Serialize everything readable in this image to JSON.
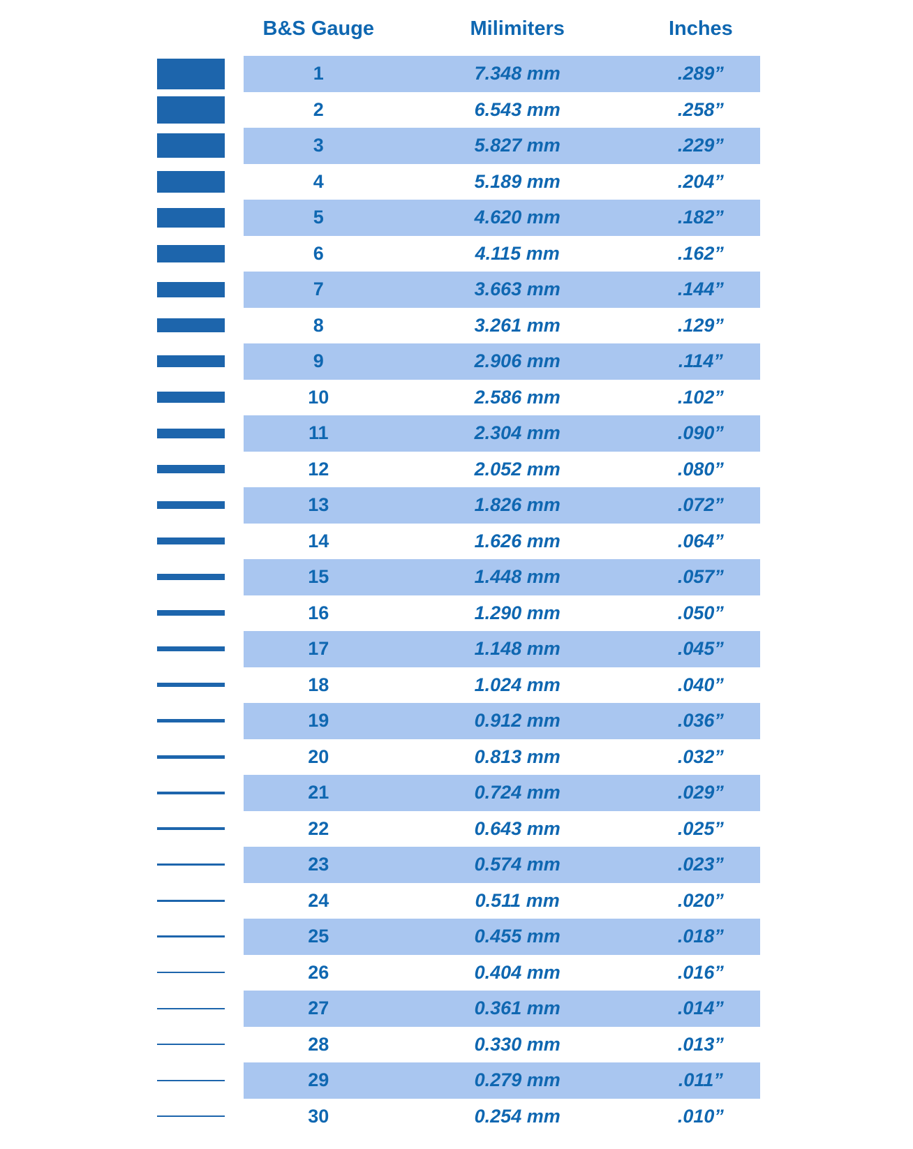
{
  "colors": {
    "bar_blue": "#1D65AC",
    "text_blue": "#0F67B1",
    "band_blue": "#A9C6F0",
    "background": "#FFFFFF"
  },
  "header": {
    "gauge": "B&S Gauge",
    "mm": "Milimiters",
    "inches": "Inches"
  },
  "chart_data": {
    "type": "table",
    "columns": [
      "B&S Gauge",
      "Milimiters",
      "Inches"
    ],
    "layout": {
      "row_striping": "odd gauge rows shaded light blue",
      "left_bars": "horizontal bars depict wire thickness proportional to mm value"
    },
    "rows": [
      {
        "gauge": "1",
        "mm": 7.348,
        "mm_label": "7.348 mm",
        "inches": 0.289,
        "inches_label": ".289”"
      },
      {
        "gauge": "2",
        "mm": 6.543,
        "mm_label": "6.543 mm",
        "inches": 0.258,
        "inches_label": ".258”"
      },
      {
        "gauge": "3",
        "mm": 5.827,
        "mm_label": "5.827 mm",
        "inches": 0.229,
        "inches_label": ".229”"
      },
      {
        "gauge": "4",
        "mm": 5.189,
        "mm_label": "5.189 mm",
        "inches": 0.204,
        "inches_label": ".204”"
      },
      {
        "gauge": "5",
        "mm": 4.62,
        "mm_label": "4.620 mm",
        "inches": 0.182,
        "inches_label": ".182”"
      },
      {
        "gauge": "6",
        "mm": 4.115,
        "mm_label": "4.115 mm",
        "inches": 0.162,
        "inches_label": ".162”"
      },
      {
        "gauge": "7",
        "mm": 3.663,
        "mm_label": "3.663 mm",
        "inches": 0.144,
        "inches_label": ".144”"
      },
      {
        "gauge": "8",
        "mm": 3.261,
        "mm_label": "3.261 mm",
        "inches": 0.129,
        "inches_label": ".129”"
      },
      {
        "gauge": "9",
        "mm": 2.906,
        "mm_label": "2.906 mm",
        "inches": 0.114,
        "inches_label": ".114”"
      },
      {
        "gauge": "10",
        "mm": 2.586,
        "mm_label": "2.586 mm",
        "inches": 0.102,
        "inches_label": ".102”"
      },
      {
        "gauge": "11",
        "mm": 2.304,
        "mm_label": "2.304 mm",
        "inches": 0.09,
        "inches_label": ".090”"
      },
      {
        "gauge": "12",
        "mm": 2.052,
        "mm_label": "2.052 mm",
        "inches": 0.08,
        "inches_label": ".080”"
      },
      {
        "gauge": "13",
        "mm": 1.826,
        "mm_label": "1.826 mm",
        "inches": 0.072,
        "inches_label": ".072”"
      },
      {
        "gauge": "14",
        "mm": 1.626,
        "mm_label": "1.626 mm",
        "inches": 0.064,
        "inches_label": ".064”"
      },
      {
        "gauge": "15",
        "mm": 1.448,
        "mm_label": "1.448 mm",
        "inches": 0.057,
        "inches_label": ".057”"
      },
      {
        "gauge": "16",
        "mm": 1.29,
        "mm_label": "1.290 mm",
        "inches": 0.05,
        "inches_label": ".050”"
      },
      {
        "gauge": "17",
        "mm": 1.148,
        "mm_label": "1.148 mm",
        "inches": 0.045,
        "inches_label": ".045”"
      },
      {
        "gauge": "18",
        "mm": 1.024,
        "mm_label": "1.024 mm",
        "inches": 0.04,
        "inches_label": ".040”"
      },
      {
        "gauge": "19",
        "mm": 0.912,
        "mm_label": "0.912 mm",
        "inches": 0.036,
        "inches_label": ".036”"
      },
      {
        "gauge": "20",
        "mm": 0.813,
        "mm_label": "0.813 mm",
        "inches": 0.032,
        "inches_label": ".032”"
      },
      {
        "gauge": "21",
        "mm": 0.724,
        "mm_label": "0.724 mm",
        "inches": 0.029,
        "inches_label": ".029”"
      },
      {
        "gauge": "22",
        "mm": 0.643,
        "mm_label": "0.643 mm",
        "inches": 0.025,
        "inches_label": ".025”"
      },
      {
        "gauge": "23",
        "mm": 0.574,
        "mm_label": "0.574 mm",
        "inches": 0.023,
        "inches_label": ".023”"
      },
      {
        "gauge": "24",
        "mm": 0.511,
        "mm_label": "0.511 mm",
        "inches": 0.02,
        "inches_label": ".020”"
      },
      {
        "gauge": "25",
        "mm": 0.455,
        "mm_label": "0.455 mm",
        "inches": 0.018,
        "inches_label": ".018”"
      },
      {
        "gauge": "26",
        "mm": 0.404,
        "mm_label": "0.404 mm",
        "inches": 0.016,
        "inches_label": ".016”"
      },
      {
        "gauge": "27",
        "mm": 0.361,
        "mm_label": "0.361 mm",
        "inches": 0.014,
        "inches_label": ".014”"
      },
      {
        "gauge": "28",
        "mm": 0.33,
        "mm_label": "0.330 mm",
        "inches": 0.013,
        "inches_label": ".013”"
      },
      {
        "gauge": "29",
        "mm": 0.279,
        "mm_label": "0.279 mm",
        "inches": 0.011,
        "inches_label": ".011”"
      },
      {
        "gauge": "30",
        "mm": 0.254,
        "mm_label": "0.254 mm",
        "inches": 0.01,
        "inches_label": ".010”"
      }
    ]
  }
}
